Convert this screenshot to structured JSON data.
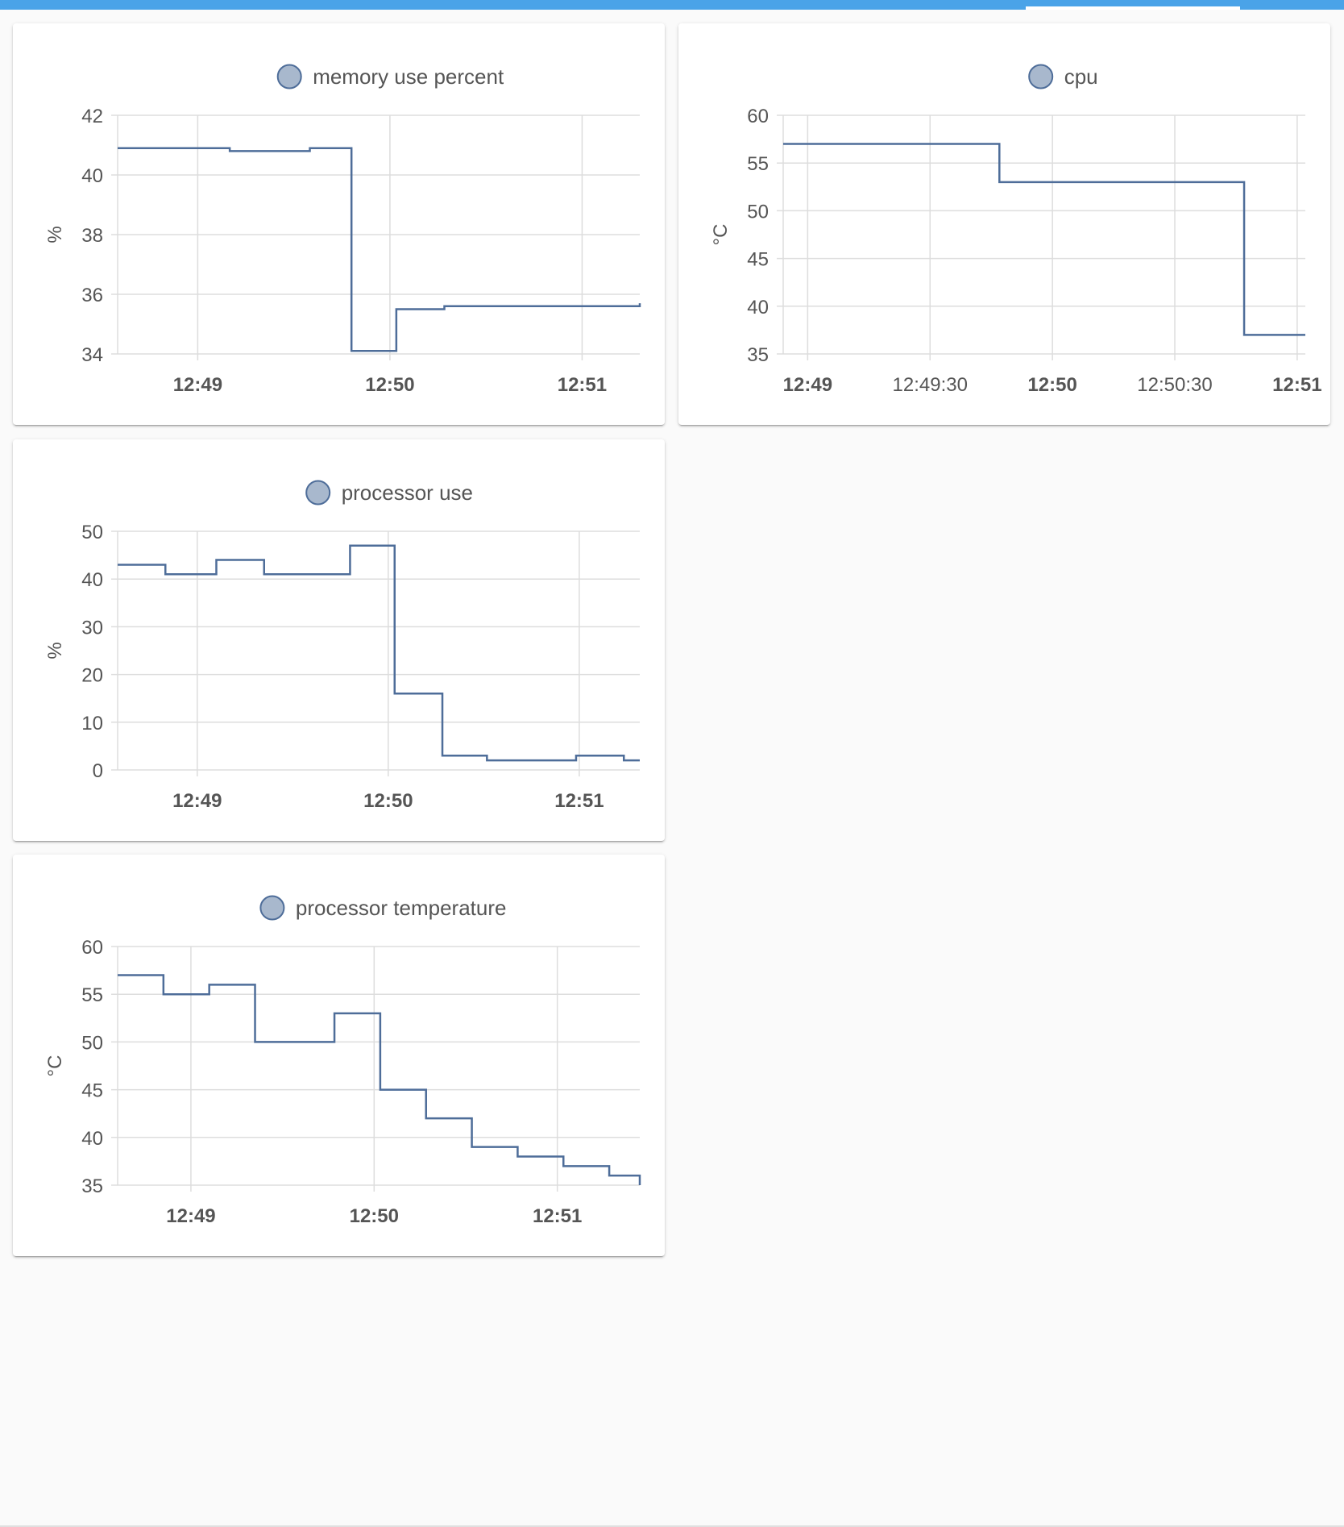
{
  "colors": {
    "accent": "#4aa3e8",
    "series_line": "#4e6d99",
    "legend_fill": "#a8b8cd",
    "legend_stroke": "#4e6d99",
    "grid": "#dddddd",
    "text": "#555555"
  },
  "cards": [
    {
      "name": "memory-use-percent-card",
      "legend_label": "memory use percent",
      "chart_data": {
        "type": "line",
        "step": true,
        "series": [
          {
            "name": "memory use percent",
            "points": [
              [
                "12:48:35",
                40.9
              ],
              [
                "12:49:10",
                40.8
              ],
              [
                "12:49:35",
                40.9
              ],
              [
                "12:49:48",
                34.1
              ],
              [
                "12:50:02",
                35.5
              ],
              [
                "12:50:17",
                35.6
              ],
              [
                "12:51:18",
                35.7
              ]
            ]
          }
        ],
        "x_start": "12:48:35",
        "x_end": "12:51:18",
        "x_ticks": [
          "12:49",
          "12:50",
          "12:51"
        ],
        "ylim": [
          34,
          42
        ],
        "y_ticks": [
          34,
          36,
          38,
          40,
          42
        ],
        "ylabel": "%",
        "grid": true,
        "legend": "top-center"
      }
    },
    {
      "name": "cpu-card",
      "legend_label": "cpu",
      "chart_data": {
        "type": "line",
        "step": true,
        "series": [
          {
            "name": "cpu",
            "points": [
              [
                "12:48:54",
                57
              ],
              [
                "12:49:47",
                53
              ],
              [
                "12:50:47",
                37
              ],
              [
                "12:51:02",
                37
              ]
            ]
          }
        ],
        "x_start": "12:48:54",
        "x_end": "12:51:02",
        "x_ticks": [
          "12:49",
          "12:49:30",
          "12:50",
          "12:50:30",
          "12:51"
        ],
        "x_ticks_bold": [
          "12:49",
          "12:50",
          "12:51"
        ],
        "ylim": [
          35,
          60
        ],
        "y_ticks": [
          35,
          40,
          45,
          50,
          55,
          60
        ],
        "ylabel": "°C",
        "grid": true,
        "legend": "top-center"
      }
    },
    {
      "name": "processor-use-card",
      "legend_label": "processor use",
      "chart_data": {
        "type": "line",
        "step": true,
        "series": [
          {
            "name": "processor use",
            "points": [
              [
                "12:48:35",
                43
              ],
              [
                "12:48:50",
                41
              ],
              [
                "12:49:06",
                44
              ],
              [
                "12:49:21",
                41
              ],
              [
                "12:49:48",
                47
              ],
              [
                "12:50:02",
                16
              ],
              [
                "12:50:17",
                3
              ],
              [
                "12:50:31",
                2
              ],
              [
                "12:50:59",
                3
              ],
              [
                "12:51:14",
                2
              ],
              [
                "12:51:19",
                2
              ]
            ]
          }
        ],
        "x_start": "12:48:35",
        "x_end": "12:51:19",
        "x_ticks": [
          "12:49",
          "12:50",
          "12:51"
        ],
        "ylim": [
          0,
          50
        ],
        "y_ticks": [
          0,
          10,
          20,
          30,
          40,
          50
        ],
        "ylabel": "%",
        "grid": true,
        "legend": "top-center"
      }
    },
    {
      "name": "processor-temperature-card",
      "legend_label": "processor temperature",
      "chart_data": {
        "type": "line",
        "step": true,
        "series": [
          {
            "name": "processor temperature",
            "points": [
              [
                "12:48:36",
                57
              ],
              [
                "12:48:51",
                55
              ],
              [
                "12:49:06",
                56
              ],
              [
                "12:49:21",
                50
              ],
              [
                "12:49:47",
                53
              ],
              [
                "12:50:02",
                45
              ],
              [
                "12:50:17",
                42
              ],
              [
                "12:50:32",
                39
              ],
              [
                "12:50:47",
                38
              ],
              [
                "12:51:02",
                37
              ],
              [
                "12:51:17",
                36
              ],
              [
                "12:51:27",
                35
              ]
            ]
          }
        ],
        "x_start": "12:48:36",
        "x_end": "12:51:27",
        "x_ticks": [
          "12:49",
          "12:50",
          "12:51"
        ],
        "ylim": [
          35,
          60
        ],
        "y_ticks": [
          35,
          40,
          45,
          50,
          55,
          60
        ],
        "ylabel": "°C",
        "grid": true,
        "legend": "top-center"
      }
    }
  ]
}
